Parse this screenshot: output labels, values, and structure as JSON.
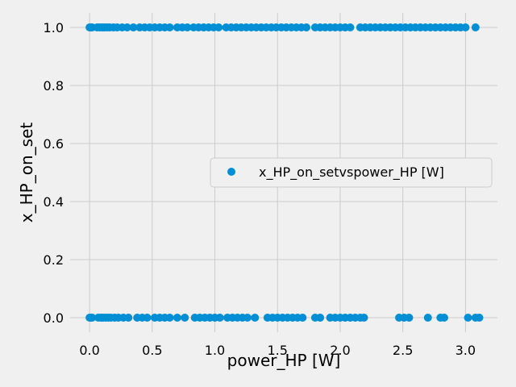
{
  "chart_data": {
    "type": "scatter",
    "xlabel": "power_HP [W]",
    "ylabel": "x_HP_on_set",
    "xlim": [
      -0.155,
      3.255
    ],
    "ylim": [
      -0.05,
      1.05
    ],
    "xticks": [
      0.0,
      0.5,
      1.0,
      1.5,
      2.0,
      2.5,
      3.0
    ],
    "xtick_labels": [
      "0.0",
      "0.5",
      "1.0",
      "1.5",
      "2.0",
      "2.5",
      "3.0"
    ],
    "yticks": [
      0.0,
      0.2,
      0.4,
      0.6,
      0.8,
      1.0
    ],
    "ytick_labels": [
      "0.0",
      "0.2",
      "0.4",
      "0.6",
      "0.8",
      "1.0"
    ],
    "grid": true,
    "legend_placement": "center-right",
    "marker_color": "#008fd5",
    "series": [
      {
        "name": "x_HP_on_setvspower_HP [W]",
        "points": [
          {
            "x": 0.0,
            "y": 1
          },
          {
            "x": 0.01,
            "y": 1
          },
          {
            "x": 0.02,
            "y": 1
          },
          {
            "x": 0.06,
            "y": 1
          },
          {
            "x": 0.08,
            "y": 1
          },
          {
            "x": 0.1,
            "y": 1
          },
          {
            "x": 0.12,
            "y": 1
          },
          {
            "x": 0.14,
            "y": 1
          },
          {
            "x": 0.16,
            "y": 1
          },
          {
            "x": 0.19,
            "y": 1
          },
          {
            "x": 0.22,
            "y": 1
          },
          {
            "x": 0.26,
            "y": 1
          },
          {
            "x": 0.3,
            "y": 1
          },
          {
            "x": 0.35,
            "y": 1
          },
          {
            "x": 0.4,
            "y": 1
          },
          {
            "x": 0.44,
            "y": 1
          },
          {
            "x": 0.48,
            "y": 1
          },
          {
            "x": 0.52,
            "y": 1
          },
          {
            "x": 0.56,
            "y": 1
          },
          {
            "x": 0.6,
            "y": 1
          },
          {
            "x": 0.64,
            "y": 1
          },
          {
            "x": 0.7,
            "y": 1
          },
          {
            "x": 0.74,
            "y": 1
          },
          {
            "x": 0.78,
            "y": 1
          },
          {
            "x": 0.83,
            "y": 1
          },
          {
            "x": 0.87,
            "y": 1
          },
          {
            "x": 0.91,
            "y": 1
          },
          {
            "x": 0.95,
            "y": 1
          },
          {
            "x": 0.99,
            "y": 1
          },
          {
            "x": 1.03,
            "y": 1
          },
          {
            "x": 1.09,
            "y": 1
          },
          {
            "x": 1.13,
            "y": 1
          },
          {
            "x": 1.17,
            "y": 1
          },
          {
            "x": 1.21,
            "y": 1
          },
          {
            "x": 1.25,
            "y": 1
          },
          {
            "x": 1.29,
            "y": 1
          },
          {
            "x": 1.33,
            "y": 1
          },
          {
            "x": 1.37,
            "y": 1
          },
          {
            "x": 1.41,
            "y": 1
          },
          {
            "x": 1.45,
            "y": 1
          },
          {
            "x": 1.49,
            "y": 1
          },
          {
            "x": 1.53,
            "y": 1
          },
          {
            "x": 1.57,
            "y": 1
          },
          {
            "x": 1.61,
            "y": 1
          },
          {
            "x": 1.65,
            "y": 1
          },
          {
            "x": 1.69,
            "y": 1
          },
          {
            "x": 1.73,
            "y": 1
          },
          {
            "x": 1.8,
            "y": 1
          },
          {
            "x": 1.84,
            "y": 1
          },
          {
            "x": 1.88,
            "y": 1
          },
          {
            "x": 1.92,
            "y": 1
          },
          {
            "x": 1.96,
            "y": 1
          },
          {
            "x": 2.0,
            "y": 1
          },
          {
            "x": 2.04,
            "y": 1
          },
          {
            "x": 2.08,
            "y": 1
          },
          {
            "x": 2.16,
            "y": 1
          },
          {
            "x": 2.2,
            "y": 1
          },
          {
            "x": 2.24,
            "y": 1
          },
          {
            "x": 2.28,
            "y": 1
          },
          {
            "x": 2.32,
            "y": 1
          },
          {
            "x": 2.36,
            "y": 1
          },
          {
            "x": 2.4,
            "y": 1
          },
          {
            "x": 2.44,
            "y": 1
          },
          {
            "x": 2.48,
            "y": 1
          },
          {
            "x": 2.52,
            "y": 1
          },
          {
            "x": 2.56,
            "y": 1
          },
          {
            "x": 2.6,
            "y": 1
          },
          {
            "x": 2.64,
            "y": 1
          },
          {
            "x": 2.68,
            "y": 1
          },
          {
            "x": 2.72,
            "y": 1
          },
          {
            "x": 2.76,
            "y": 1
          },
          {
            "x": 2.8,
            "y": 1
          },
          {
            "x": 2.84,
            "y": 1
          },
          {
            "x": 2.88,
            "y": 1
          },
          {
            "x": 2.92,
            "y": 1
          },
          {
            "x": 2.96,
            "y": 1
          },
          {
            "x": 3.0,
            "y": 1
          },
          {
            "x": 3.08,
            "y": 1
          },
          {
            "x": 0.0,
            "y": 0
          },
          {
            "x": 0.01,
            "y": 0
          },
          {
            "x": 0.02,
            "y": 0
          },
          {
            "x": 0.07,
            "y": 0
          },
          {
            "x": 0.09,
            "y": 0
          },
          {
            "x": 0.11,
            "y": 0
          },
          {
            "x": 0.13,
            "y": 0
          },
          {
            "x": 0.15,
            "y": 0
          },
          {
            "x": 0.17,
            "y": 0
          },
          {
            "x": 0.2,
            "y": 0
          },
          {
            "x": 0.23,
            "y": 0
          },
          {
            "x": 0.27,
            "y": 0
          },
          {
            "x": 0.31,
            "y": 0
          },
          {
            "x": 0.38,
            "y": 0
          },
          {
            "x": 0.42,
            "y": 0
          },
          {
            "x": 0.46,
            "y": 0
          },
          {
            "x": 0.52,
            "y": 0
          },
          {
            "x": 0.56,
            "y": 0
          },
          {
            "x": 0.6,
            "y": 0
          },
          {
            "x": 0.64,
            "y": 0
          },
          {
            "x": 0.7,
            "y": 0
          },
          {
            "x": 0.76,
            "y": 0
          },
          {
            "x": 0.84,
            "y": 0
          },
          {
            "x": 0.88,
            "y": 0
          },
          {
            "x": 0.92,
            "y": 0
          },
          {
            "x": 0.96,
            "y": 0
          },
          {
            "x": 1.0,
            "y": 0
          },
          {
            "x": 1.04,
            "y": 0
          },
          {
            "x": 1.1,
            "y": 0
          },
          {
            "x": 1.14,
            "y": 0
          },
          {
            "x": 1.18,
            "y": 0
          },
          {
            "x": 1.22,
            "y": 0
          },
          {
            "x": 1.26,
            "y": 0
          },
          {
            "x": 1.32,
            "y": 0
          },
          {
            "x": 1.42,
            "y": 0
          },
          {
            "x": 1.46,
            "y": 0
          },
          {
            "x": 1.5,
            "y": 0
          },
          {
            "x": 1.54,
            "y": 0
          },
          {
            "x": 1.58,
            "y": 0
          },
          {
            "x": 1.62,
            "y": 0
          },
          {
            "x": 1.66,
            "y": 0
          },
          {
            "x": 1.7,
            "y": 0
          },
          {
            "x": 1.8,
            "y": 0
          },
          {
            "x": 1.84,
            "y": 0
          },
          {
            "x": 1.92,
            "y": 0
          },
          {
            "x": 1.96,
            "y": 0
          },
          {
            "x": 2.0,
            "y": 0
          },
          {
            "x": 2.04,
            "y": 0
          },
          {
            "x": 2.08,
            "y": 0
          },
          {
            "x": 2.12,
            "y": 0
          },
          {
            "x": 2.16,
            "y": 0
          },
          {
            "x": 2.19,
            "y": 0
          },
          {
            "x": 2.47,
            "y": 0
          },
          {
            "x": 2.51,
            "y": 0
          },
          {
            "x": 2.55,
            "y": 0
          },
          {
            "x": 2.7,
            "y": 0
          },
          {
            "x": 2.8,
            "y": 0
          },
          {
            "x": 2.83,
            "y": 0
          },
          {
            "x": 3.02,
            "y": 0
          },
          {
            "x": 3.08,
            "y": 0
          },
          {
            "x": 3.11,
            "y": 0
          }
        ]
      }
    ]
  }
}
